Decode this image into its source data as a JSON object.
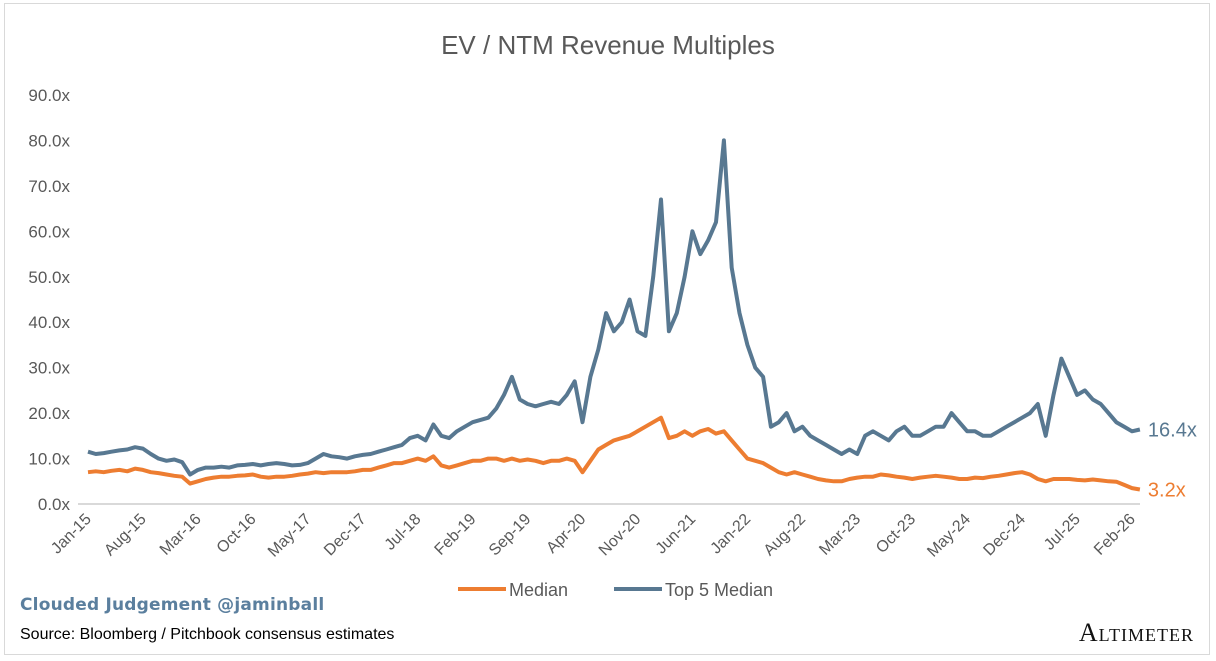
{
  "chart_data": {
    "type": "line",
    "title": "EV / NTM Revenue Multiples",
    "xlabel": "",
    "ylabel": "",
    "ylim": [
      0,
      90
    ],
    "yticks": [
      "0.0x",
      "10.0x",
      "20.0x",
      "30.0x",
      "40.0x",
      "50.0x",
      "60.0x",
      "70.0x",
      "80.0x",
      "90.0x"
    ],
    "xticks": [
      "Jan-15",
      "Aug-15",
      "Mar-16",
      "Oct-16",
      "May-17",
      "Dec-17",
      "Jul-18",
      "Feb-19",
      "Sep-19",
      "Apr-20",
      "Nov-20",
      "Jun-21",
      "Jan-22",
      "Aug-22",
      "Mar-23",
      "Oct-23",
      "May-24",
      "Dec-24",
      "Jul-25",
      "Feb-26"
    ],
    "x_start": "Jan-15",
    "x_step": "monthly",
    "tick_interval_months": 7,
    "grid": false,
    "legend_position": "bottom",
    "series": [
      {
        "name": "Median",
        "color": "#ed7d31",
        "end_label": "3.2x",
        "values": [
          7,
          7.2,
          7,
          7.3,
          7.5,
          7.2,
          7.8,
          7.5,
          7,
          6.8,
          6.5,
          6.2,
          6,
          4.5,
          5,
          5.5,
          5.8,
          6,
          6,
          6.2,
          6.3,
          6.5,
          6,
          5.8,
          6,
          6,
          6.2,
          6.5,
          6.7,
          7,
          6.8,
          7,
          7,
          7,
          7.2,
          7.5,
          7.5,
          8,
          8.5,
          9,
          9,
          9.5,
          10,
          9.5,
          10.5,
          8.5,
          8,
          8.5,
          9,
          9.5,
          9.5,
          10,
          10,
          9.5,
          10,
          9.5,
          9.8,
          9.5,
          9,
          9.5,
          9.5,
          10,
          9.5,
          7,
          9.5,
          12,
          13,
          14,
          14.5,
          15,
          16,
          17,
          18,
          19,
          14.5,
          15,
          16,
          15,
          16,
          16.5,
          15.5,
          16,
          14,
          12,
          10,
          9.5,
          9,
          8,
          7,
          6.5,
          7,
          6.5,
          6,
          5.5,
          5.2,
          5,
          5,
          5.5,
          5.8,
          6,
          6,
          6.5,
          6.3,
          6,
          5.8,
          5.5,
          5.8,
          6,
          6.2,
          6,
          5.8,
          5.5,
          5.5,
          5.8,
          5.7,
          6,
          6.2,
          6.5,
          6.8,
          7,
          6.5,
          5.5,
          5,
          5.5,
          5.5,
          5.5,
          5.3,
          5.2,
          5.4,
          5.2,
          5,
          4.9,
          4.2,
          3.5,
          3.2
        ]
      },
      {
        "name": "Top 5 Median",
        "color": "#587891",
        "end_label": "16.4x",
        "values": [
          11.5,
          11,
          11.2,
          11.5,
          11.8,
          12,
          12.5,
          12.2,
          11,
          10,
          9.5,
          9.8,
          9.2,
          6.5,
          7.5,
          8,
          8,
          8.2,
          8,
          8.5,
          8.6,
          8.8,
          8.5,
          8.8,
          9,
          8.8,
          8.5,
          8.6,
          9,
          10,
          11,
          10.5,
          10.3,
          10,
          10.5,
          10.8,
          11,
          11.5,
          12,
          12.5,
          13,
          14.5,
          15,
          14,
          17.5,
          15,
          14.5,
          16,
          17,
          18,
          18.5,
          19,
          21,
          24,
          28,
          23,
          22,
          21.5,
          22,
          22.5,
          22,
          24,
          27,
          18,
          28,
          34,
          42,
          38,
          40,
          45,
          38,
          37,
          50,
          67,
          38,
          42,
          50,
          60,
          55,
          58,
          62,
          80,
          52,
          42,
          35,
          30,
          28,
          17,
          18,
          20,
          16,
          17,
          15,
          14,
          13,
          12,
          11,
          12,
          11,
          15,
          16,
          15,
          14,
          16,
          17,
          15,
          15,
          16,
          17,
          17,
          20,
          18,
          16,
          16,
          15,
          15,
          16,
          17,
          18,
          19,
          20,
          22,
          15,
          24,
          32,
          28,
          24,
          25,
          23,
          22,
          20,
          18,
          17,
          16,
          16.4
        ]
      }
    ]
  },
  "footer": {
    "brand": "Clouded Judgement @jaminball",
    "source": "Source: Bloomberg / Pitchbook consensus estimates",
    "logo": "Altimeter"
  }
}
